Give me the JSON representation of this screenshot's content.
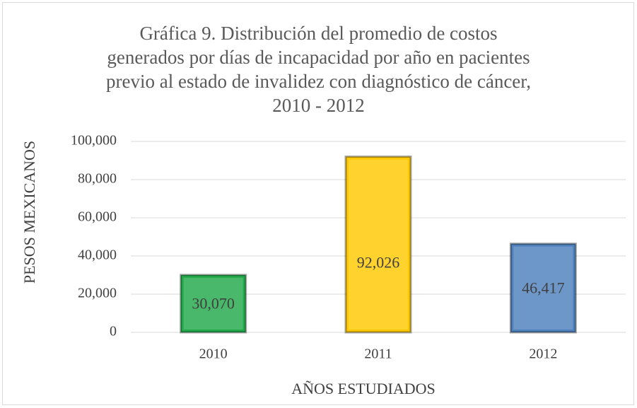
{
  "chart_data": {
    "type": "bar",
    "title": "Gráfica 9. Distribución del promedio de costos\ngenerados por días de incapacidad por año en pacientes\nprevio al estado de invalidez con diagnóstico de cáncer,\n2010 - 2012",
    "x_label": "AÑOS  ESTUDIADOS",
    "y_label": "PESOS  MEXICANOS",
    "categories": [
      "2010",
      "2011",
      "2012"
    ],
    "values": [
      30070,
      92026,
      46417
    ],
    "value_labels": [
      "30,070",
      "92,026",
      "46,417"
    ],
    "colors": [
      "#22a94a",
      "#ffc800",
      "#4f81bd"
    ],
    "ylim": [
      0,
      100000
    ],
    "yticks": [
      0,
      {
        "value": 20000,
        "label": "20,000"
      },
      {
        "value": 40000,
        "label": "40,000"
      },
      {
        "value": 60000,
        "label": "60,000"
      },
      {
        "value": 80000,
        "label": "80,000"
      },
      {
        "value": 100000,
        "label": "100,000"
      }
    ],
    "grid": true
  }
}
